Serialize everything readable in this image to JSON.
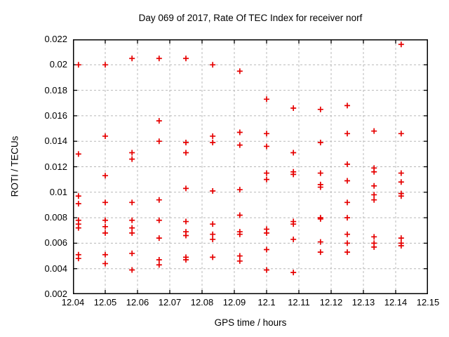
{
  "colors": {
    "background": "#ffffff",
    "marker": "#e60000",
    "grid": "#b8b8b8",
    "border": "#000000",
    "text": "#000000"
  },
  "chart_data": {
    "type": "scatter",
    "title": "Day 069 of 2017, Rate Of TEC Index for receiver norf",
    "xlabel": "GPS time / hours",
    "ylabel": "ROTI / TECUs",
    "xlim": [
      12.04,
      12.15
    ],
    "ylim": [
      0.002,
      0.022
    ],
    "grid": true,
    "legend_position": "none",
    "marker": "plus",
    "x_ticks": [
      12.04,
      12.05,
      12.06,
      12.07,
      12.08,
      12.09,
      12.1,
      12.11,
      12.12,
      12.13,
      12.14,
      12.15
    ],
    "x_tick_labels": [
      "12.04",
      "12.05",
      "12.06",
      "12.07",
      "12.08",
      "12.09",
      "12.1",
      "12.11",
      "12.12",
      "12.13",
      "12.14",
      "12.15"
    ],
    "y_ticks": [
      0.002,
      0.004,
      0.006,
      0.008,
      0.01,
      0.012,
      0.014,
      0.016,
      0.018,
      0.02,
      0.022
    ],
    "y_tick_labels": [
      "0.002",
      "0.004",
      "0.006",
      "0.008",
      "0.01",
      "0.012",
      "0.014",
      "0.016",
      "0.018",
      "0.02",
      "0.022"
    ],
    "series": [
      {
        "name": "ROTI",
        "points": [
          [
            12.0417,
            0.02
          ],
          [
            12.0417,
            0.013
          ],
          [
            12.0417,
            0.0097
          ],
          [
            12.0417,
            0.0091
          ],
          [
            12.0417,
            0.0078
          ],
          [
            12.0417,
            0.0075
          ],
          [
            12.0417,
            0.0072
          ],
          [
            12.0417,
            0.0051
          ],
          [
            12.0417,
            0.0048
          ],
          [
            12.05,
            0.02
          ],
          [
            12.05,
            0.0144
          ],
          [
            12.05,
            0.0113
          ],
          [
            12.05,
            0.0092
          ],
          [
            12.05,
            0.0078
          ],
          [
            12.05,
            0.0073
          ],
          [
            12.05,
            0.0068
          ],
          [
            12.05,
            0.0051
          ],
          [
            12.05,
            0.0044
          ],
          [
            12.0583,
            0.0205
          ],
          [
            12.0583,
            0.0131
          ],
          [
            12.0583,
            0.0126
          ],
          [
            12.0583,
            0.0092
          ],
          [
            12.0583,
            0.0078
          ],
          [
            12.0583,
            0.0072
          ],
          [
            12.0583,
            0.0068
          ],
          [
            12.0583,
            0.0052
          ],
          [
            12.0583,
            0.0039
          ],
          [
            12.0667,
            0.0205
          ],
          [
            12.0667,
            0.0156
          ],
          [
            12.0667,
            0.014
          ],
          [
            12.0667,
            0.0094
          ],
          [
            12.0667,
            0.0078
          ],
          [
            12.0667,
            0.0064
          ],
          [
            12.0667,
            0.0047
          ],
          [
            12.0667,
            0.0043
          ],
          [
            12.075,
            0.0205
          ],
          [
            12.075,
            0.0139
          ],
          [
            12.075,
            0.0131
          ],
          [
            12.075,
            0.0103
          ],
          [
            12.075,
            0.0077
          ],
          [
            12.075,
            0.0069
          ],
          [
            12.075,
            0.0066
          ],
          [
            12.075,
            0.0049
          ],
          [
            12.075,
            0.0047
          ],
          [
            12.0833,
            0.02
          ],
          [
            12.0833,
            0.0144
          ],
          [
            12.0833,
            0.0139
          ],
          [
            12.0833,
            0.0101
          ],
          [
            12.0833,
            0.0075
          ],
          [
            12.0833,
            0.0067
          ],
          [
            12.0833,
            0.0063
          ],
          [
            12.0833,
            0.0049
          ],
          [
            12.0917,
            0.0195
          ],
          [
            12.0917,
            0.0147
          ],
          [
            12.0917,
            0.0137
          ],
          [
            12.0917,
            0.0102
          ],
          [
            12.0917,
            0.0082
          ],
          [
            12.0917,
            0.0069
          ],
          [
            12.0917,
            0.0067
          ],
          [
            12.0917,
            0.005
          ],
          [
            12.0917,
            0.0046
          ],
          [
            12.1,
            0.0173
          ],
          [
            12.1,
            0.0146
          ],
          [
            12.1,
            0.0136
          ],
          [
            12.1,
            0.0115
          ],
          [
            12.1,
            0.011
          ],
          [
            12.1,
            0.0071
          ],
          [
            12.1,
            0.0068
          ],
          [
            12.1,
            0.0055
          ],
          [
            12.1,
            0.0039
          ],
          [
            12.1083,
            0.0166
          ],
          [
            12.1083,
            0.0131
          ],
          [
            12.1083,
            0.0116
          ],
          [
            12.1083,
            0.0114
          ],
          [
            12.1083,
            0.0077
          ],
          [
            12.1083,
            0.0075
          ],
          [
            12.1083,
            0.0063
          ],
          [
            12.1083,
            0.0037
          ],
          [
            12.1167,
            0.0165
          ],
          [
            12.1167,
            0.0139
          ],
          [
            12.1167,
            0.0115
          ],
          [
            12.1167,
            0.0106
          ],
          [
            12.1167,
            0.0104
          ],
          [
            12.1167,
            0.008
          ],
          [
            12.1167,
            0.0079
          ],
          [
            12.1167,
            0.0061
          ],
          [
            12.1167,
            0.0053
          ],
          [
            12.125,
            0.0168
          ],
          [
            12.125,
            0.0146
          ],
          [
            12.125,
            0.0122
          ],
          [
            12.125,
            0.0109
          ],
          [
            12.125,
            0.0092
          ],
          [
            12.125,
            0.008
          ],
          [
            12.125,
            0.0067
          ],
          [
            12.125,
            0.006
          ],
          [
            12.125,
            0.0053
          ],
          [
            12.1333,
            0.0148
          ],
          [
            12.1333,
            0.0119
          ],
          [
            12.1333,
            0.0116
          ],
          [
            12.1333,
            0.0105
          ],
          [
            12.1333,
            0.0098
          ],
          [
            12.1333,
            0.0094
          ],
          [
            12.1333,
            0.0065
          ],
          [
            12.1333,
            0.006
          ],
          [
            12.1333,
            0.0057
          ],
          [
            12.1417,
            0.0216
          ],
          [
            12.1417,
            0.0146
          ],
          [
            12.1417,
            0.0115
          ],
          [
            12.1417,
            0.0108
          ],
          [
            12.1417,
            0.0099
          ],
          [
            12.1417,
            0.0097
          ],
          [
            12.1417,
            0.0064
          ],
          [
            12.1417,
            0.006
          ],
          [
            12.1417,
            0.0058
          ]
        ]
      }
    ]
  }
}
